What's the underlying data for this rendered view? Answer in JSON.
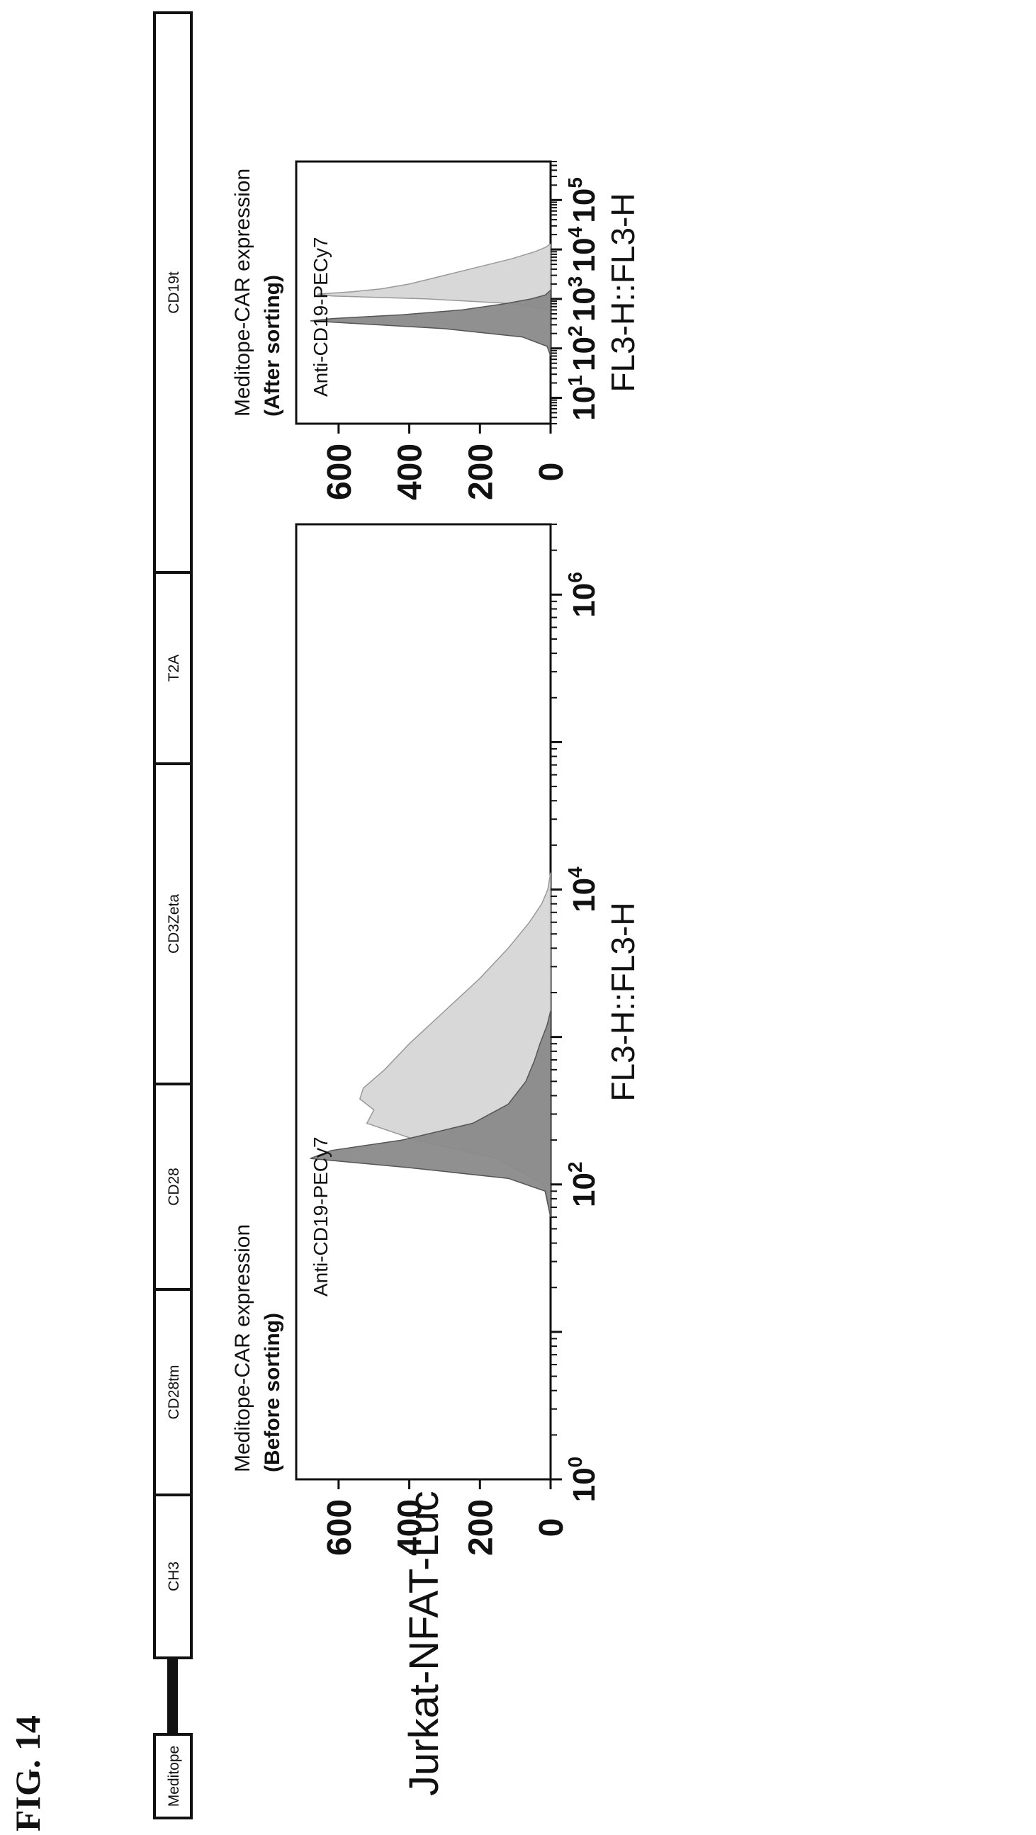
{
  "figure_label": "FIG. 14",
  "construct": {
    "segments": [
      "Meditope",
      "CH3",
      "CD28tm",
      "CD28",
      "CD3Zeta",
      "T2A",
      "CD19t"
    ]
  },
  "cell_line": "Jurkat-NFAT-Luc",
  "colors": {
    "negative_fill": "#8a8a8a",
    "positive_fill": "#d6d6d6",
    "frame": "#111111"
  },
  "chart_data": [
    {
      "type": "area",
      "title_line1": "Meditope-CAR expression",
      "title_line2": "(Before sorting)",
      "annotation": "Anti-CD19-PECy7",
      "xlabel": "FL3-H::FL3-H",
      "x_scale": "log",
      "xlim": [
        1,
        3000000
      ],
      "ylim": [
        0,
        720
      ],
      "x_ticks": [
        {
          "exp": 0,
          "label": "10"
        },
        {
          "exp": 2,
          "label": "10"
        },
        {
          "exp": 4,
          "label": "10"
        },
        {
          "exp": 6,
          "label": "10"
        }
      ],
      "y_ticks": [
        0,
        200,
        400,
        600
      ],
      "series": [
        {
          "role": "positive",
          "points": [
            [
              60,
              0
            ],
            [
              100,
              20
            ],
            [
              150,
              150
            ],
            [
              200,
              380
            ],
            [
              260,
              520
            ],
            [
              320,
              500
            ],
            [
              380,
              540
            ],
            [
              450,
              530
            ],
            [
              600,
              470
            ],
            [
              900,
              400
            ],
            [
              1500,
              300
            ],
            [
              2500,
              200
            ],
            [
              4000,
              120
            ],
            [
              6000,
              60
            ],
            [
              8000,
              25
            ],
            [
              10000,
              8
            ],
            [
              13000,
              0
            ]
          ]
        },
        {
          "role": "negative",
          "points": [
            [
              60,
              0
            ],
            [
              90,
              15
            ],
            [
              110,
              120
            ],
            [
              130,
              400
            ],
            [
              150,
              680
            ],
            [
              170,
              620
            ],
            [
              200,
              420
            ],
            [
              260,
              220
            ],
            [
              350,
              120
            ],
            [
              500,
              70
            ],
            [
              700,
              45
            ],
            [
              900,
              30
            ],
            [
              1200,
              10
            ],
            [
              1500,
              0
            ]
          ]
        }
      ]
    },
    {
      "type": "area",
      "title_line1": "Meditope-CAR expression",
      "title_line2": "(After sorting)",
      "annotation": "Anti-CD19-PECy7",
      "xlabel": "FL3-H::FL3-H",
      "x_scale": "log",
      "xlim": [
        3,
        600000
      ],
      "ylim": [
        0,
        720
      ],
      "x_ticks": [
        {
          "exp": 1,
          "label": "10"
        },
        {
          "exp": 2,
          "label": "10"
        },
        {
          "exp": 3,
          "label": "10"
        },
        {
          "exp": 4,
          "label": "10"
        },
        {
          "exp": 5,
          "label": "10"
        }
      ],
      "y_ticks": [
        0,
        200,
        400,
        600
      ],
      "series": [
        {
          "role": "positive",
          "points": [
            [
              600,
              0
            ],
            [
              800,
              100
            ],
            [
              1000,
              350
            ],
            [
              1150,
              620
            ],
            [
              1250,
              660
            ],
            [
              1400,
              560
            ],
            [
              1600,
              480
            ],
            [
              2000,
              400
            ],
            [
              3000,
              300
            ],
            [
              4500,
              200
            ],
            [
              6500,
              110
            ],
            [
              9000,
              45
            ],
            [
              11000,
              15
            ],
            [
              13000,
              0
            ]
          ]
        },
        {
          "role": "negative",
          "points": [
            [
              70,
              0
            ],
            [
              110,
              10
            ],
            [
              170,
              80
            ],
            [
              250,
              300
            ],
            [
              320,
              560
            ],
            [
              360,
              680
            ],
            [
              400,
              620
            ],
            [
              480,
              420
            ],
            [
              600,
              250
            ],
            [
              800,
              130
            ],
            [
              1000,
              55
            ],
            [
              1200,
              15
            ],
            [
              1500,
              0
            ]
          ]
        }
      ]
    }
  ]
}
